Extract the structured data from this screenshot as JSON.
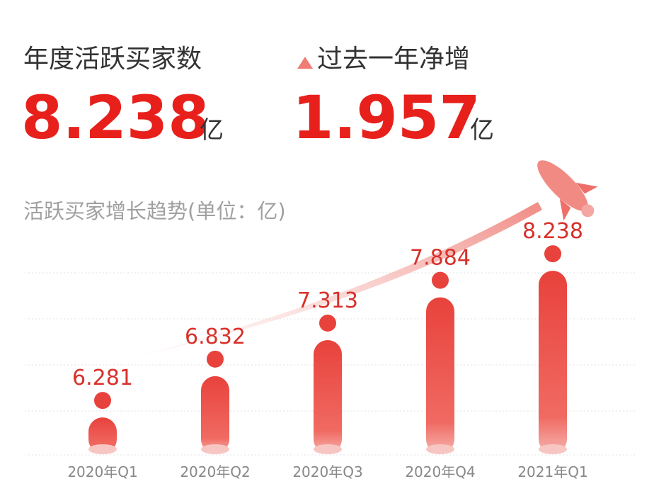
{
  "header": {
    "buyers_label": "年度活跃买家数",
    "buyers_value": "8.238",
    "buyers_unit": "亿",
    "growth_label": "过去一年净增",
    "growth_value": "1.957",
    "growth_unit": "亿"
  },
  "chart_data": {
    "type": "bar",
    "title": "活跃买家增长趋势(单位：亿)",
    "categories": [
      "2020年Q1",
      "2020年Q2",
      "2020年Q3",
      "2020年Q4",
      "2021年Q1"
    ],
    "values": [
      6.281,
      6.832,
      7.313,
      7.884,
      8.238
    ],
    "color": "#e8423c",
    "ylim": [
      5.8,
      8.4
    ]
  }
}
